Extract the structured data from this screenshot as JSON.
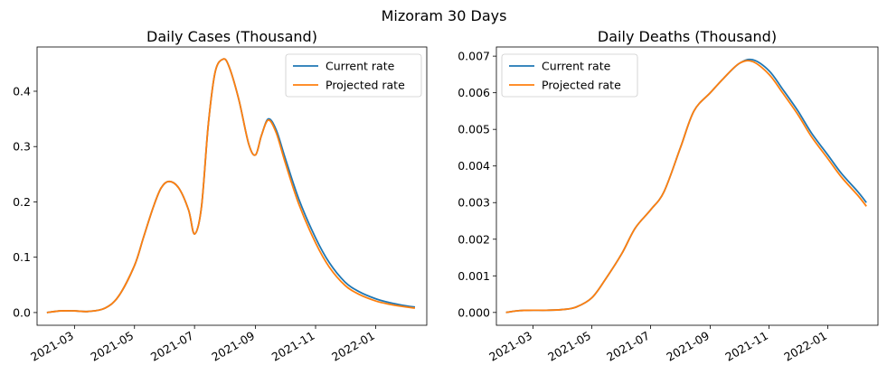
{
  "figure_title": "Mizoram 30 Days",
  "colors": {
    "current": "#1f77b4",
    "projected": "#ff7f0e"
  },
  "chart_data": [
    {
      "type": "line",
      "title": "Daily Cases (Thousand)",
      "xlabel": "",
      "ylabel": "",
      "x_tick_labels": [
        "2021-03",
        "2021-05",
        "2021-07",
        "2021-09",
        "2021-11",
        "2022-01"
      ],
      "x_ticks": [
        "2021-03-01",
        "2021-05-01",
        "2021-07-01",
        "2021-09-01",
        "2021-11-01",
        "2022-01-01"
      ],
      "xlim": [
        "2021-01-22",
        "2022-02-22"
      ],
      "y_tick_labels": [
        "0.0",
        "0.1",
        "0.2",
        "0.3",
        "0.4"
      ],
      "y_ticks": [
        0,
        0.1,
        0.2,
        0.3,
        0.4
      ],
      "ylim": [
        -0.023,
        0.48
      ],
      "grid": false,
      "legend_position": "upper right",
      "x": [
        "2021-02-01",
        "2021-02-15",
        "2021-03-01",
        "2021-03-15",
        "2021-04-01",
        "2021-04-15",
        "2021-05-01",
        "2021-05-10",
        "2021-05-20",
        "2021-05-28",
        "2021-06-05",
        "2021-06-15",
        "2021-06-25",
        "2021-07-01",
        "2021-07-08",
        "2021-07-15",
        "2021-07-22",
        "2021-07-30",
        "2021-08-05",
        "2021-08-15",
        "2021-08-25",
        "2021-09-01",
        "2021-09-07",
        "2021-09-14",
        "2021-09-22",
        "2021-10-01",
        "2021-10-15",
        "2021-11-01",
        "2021-11-15",
        "2021-12-01",
        "2021-12-15",
        "2022-01-01",
        "2022-01-15",
        "2022-02-01",
        "2022-02-10"
      ],
      "series": [
        {
          "name": "Current rate",
          "values": [
            0.0,
            0.003,
            0.003,
            0.002,
            0.008,
            0.03,
            0.085,
            0.135,
            0.19,
            0.225,
            0.237,
            0.225,
            0.185,
            0.142,
            0.19,
            0.34,
            0.435,
            0.458,
            0.445,
            0.385,
            0.305,
            0.285,
            0.32,
            0.35,
            0.33,
            0.28,
            0.205,
            0.135,
            0.09,
            0.055,
            0.038,
            0.025,
            0.018,
            0.012,
            0.01
          ]
        },
        {
          "name": "Projected rate",
          "values": [
            0.0,
            0.003,
            0.003,
            0.002,
            0.008,
            0.03,
            0.085,
            0.135,
            0.19,
            0.225,
            0.237,
            0.225,
            0.185,
            0.142,
            0.19,
            0.34,
            0.435,
            0.458,
            0.445,
            0.385,
            0.305,
            0.285,
            0.32,
            0.348,
            0.325,
            0.272,
            0.196,
            0.126,
            0.082,
            0.049,
            0.033,
            0.021,
            0.015,
            0.01,
            0.008
          ]
        }
      ]
    },
    {
      "type": "line",
      "title": "Daily Deaths (Thousand)",
      "xlabel": "",
      "ylabel": "",
      "x_tick_labels": [
        "2021-03",
        "2021-05",
        "2021-07",
        "2021-09",
        "2021-11",
        "2022-01"
      ],
      "x_ticks": [
        "2021-03-01",
        "2021-05-01",
        "2021-07-01",
        "2021-09-01",
        "2021-11-01",
        "2022-01-01"
      ],
      "xlim": [
        "2021-01-22",
        "2022-02-22"
      ],
      "y_tick_labels": [
        "0.000",
        "0.001",
        "0.002",
        "0.003",
        "0.004",
        "0.005",
        "0.006",
        "0.007"
      ],
      "y_ticks": [
        0,
        0.001,
        0.002,
        0.003,
        0.004,
        0.005,
        0.006,
        0.007
      ],
      "ylim": [
        -0.00035,
        0.00725
      ],
      "grid": false,
      "legend_position": "upper left",
      "x": [
        "2021-02-01",
        "2021-02-15",
        "2021-03-01",
        "2021-03-15",
        "2021-04-01",
        "2021-04-15",
        "2021-05-01",
        "2021-05-15",
        "2021-06-01",
        "2021-06-15",
        "2021-07-01",
        "2021-07-15",
        "2021-08-01",
        "2021-08-15",
        "2021-09-01",
        "2021-09-15",
        "2021-10-01",
        "2021-10-15",
        "2021-11-01",
        "2021-11-15",
        "2021-12-01",
        "2021-12-15",
        "2022-01-01",
        "2022-01-15",
        "2022-02-01",
        "2022-02-10"
      ],
      "series": [
        {
          "name": "Current rate",
          "values": [
            0.0,
            5e-05,
            6e-05,
            6e-05,
            8e-05,
            0.00015,
            0.0004,
            0.0009,
            0.0016,
            0.0023,
            0.0028,
            0.0033,
            0.0045,
            0.0055,
            0.006,
            0.0064,
            0.0068,
            0.0069,
            0.0066,
            0.0061,
            0.0055,
            0.0049,
            0.0043,
            0.0038,
            0.0033,
            0.003
          ]
        },
        {
          "name": "Projected rate",
          "values": [
            0.0,
            5e-05,
            6e-05,
            6e-05,
            8e-05,
            0.00015,
            0.0004,
            0.0009,
            0.0016,
            0.0023,
            0.0028,
            0.0033,
            0.0045,
            0.0055,
            0.006,
            0.0064,
            0.0068,
            0.00685,
            0.0065,
            0.006,
            0.0054,
            0.0048,
            0.0042,
            0.0037,
            0.0032,
            0.0029
          ]
        }
      ]
    }
  ]
}
